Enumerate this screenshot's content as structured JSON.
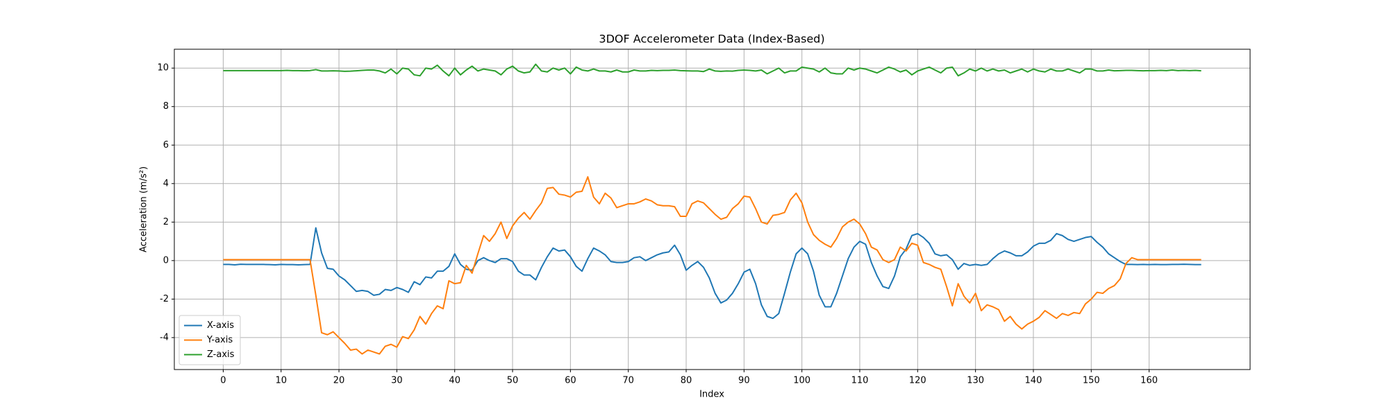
{
  "chart_data": {
    "type": "line",
    "title": "3DOF Accelerometer Data (Index-Based)",
    "xlabel": "Index",
    "ylabel": "Acceleration (m/s²)",
    "x": [
      0,
      1,
      2,
      3,
      4,
      5,
      6,
      7,
      8,
      9,
      10,
      11,
      12,
      13,
      14,
      15,
      16,
      17,
      18,
      19,
      20,
      21,
      22,
      23,
      24,
      25,
      26,
      27,
      28,
      29,
      30,
      31,
      32,
      33,
      34,
      35,
      36,
      37,
      38,
      39,
      40,
      41,
      42,
      43,
      44,
      45,
      46,
      47,
      48,
      49,
      50,
      51,
      52,
      53,
      54,
      55,
      56,
      57,
      58,
      59,
      60,
      61,
      62,
      63,
      64,
      65,
      66,
      67,
      68,
      69,
      70,
      71,
      72,
      73,
      74,
      75,
      76,
      77,
      78,
      79,
      80,
      81,
      82,
      83,
      84,
      85,
      86,
      87,
      88,
      89,
      90,
      91,
      92,
      93,
      94,
      95,
      96,
      97,
      98,
      99,
      100,
      101,
      102,
      103,
      104,
      105,
      106,
      107,
      108,
      109,
      110,
      111,
      112,
      113,
      114,
      115,
      116,
      117,
      118,
      119,
      120,
      121,
      122,
      123,
      124,
      125,
      126,
      127,
      128,
      129,
      130,
      131,
      132,
      133,
      134,
      135,
      136,
      137,
      138,
      139,
      140,
      141,
      142,
      143,
      144,
      145,
      146,
      147,
      148,
      149,
      150,
      151,
      152,
      153,
      154,
      155,
      156,
      157,
      158,
      159,
      160,
      161,
      162,
      163,
      164,
      165,
      166,
      167,
      168,
      169
    ],
    "series": [
      {
        "name": "X-axis",
        "color": "#1f77b4",
        "values": [
          -0.2,
          -0.2,
          -0.22,
          -0.19,
          -0.2,
          -0.2,
          -0.2,
          -0.2,
          -0.21,
          -0.22,
          -0.2,
          -0.21,
          -0.21,
          -0.22,
          -0.21,
          -0.2,
          1.7,
          0.4,
          -0.4,
          -0.45,
          -0.8,
          -1.0,
          -1.3,
          -1.6,
          -1.55,
          -1.6,
          -1.8,
          -1.75,
          -1.5,
          -1.55,
          -1.4,
          -1.5,
          -1.65,
          -1.1,
          -1.25,
          -0.85,
          -0.9,
          -0.55,
          -0.55,
          -0.3,
          0.35,
          -0.2,
          -0.45,
          -0.5,
          0.0,
          0.15,
          0.0,
          -0.1,
          0.1,
          0.1,
          -0.05,
          -0.55,
          -0.75,
          -0.75,
          -1.0,
          -0.35,
          0.2,
          0.65,
          0.5,
          0.55,
          0.2,
          -0.3,
          -0.55,
          0.1,
          0.65,
          0.5,
          0.3,
          -0.05,
          -0.1,
          -0.1,
          -0.05,
          0.15,
          0.2,
          0.0,
          0.15,
          0.3,
          0.4,
          0.45,
          0.8,
          0.3,
          -0.5,
          -0.25,
          -0.05,
          -0.35,
          -0.9,
          -1.7,
          -2.2,
          -2.05,
          -1.7,
          -1.2,
          -0.6,
          -0.45,
          -1.2,
          -2.3,
          -2.9,
          -3.0,
          -2.75,
          -1.7,
          -0.6,
          0.35,
          0.65,
          0.35,
          -0.55,
          -1.8,
          -2.4,
          -2.4,
          -1.7,
          -0.8,
          0.1,
          0.7,
          1.0,
          0.85,
          -0.1,
          -0.8,
          -1.35,
          -1.45,
          -0.8,
          0.2,
          0.6,
          1.3,
          1.4,
          1.2,
          0.9,
          0.35,
          0.25,
          0.3,
          0.05,
          -0.45,
          -0.15,
          -0.25,
          -0.2,
          -0.25,
          -0.2,
          0.1,
          0.35,
          0.5,
          0.4,
          0.25,
          0.25,
          0.45,
          0.75,
          0.9,
          0.9,
          1.05,
          1.4,
          1.3,
          1.1,
          1.0,
          1.1,
          1.2,
          1.25,
          0.95,
          0.7,
          0.35,
          0.15,
          -0.05,
          -0.2,
          -0.2,
          -0.21,
          -0.2,
          -0.21,
          -0.2,
          -0.21,
          -0.21,
          -0.2,
          -0.2,
          -0.19,
          -0.2,
          -0.21,
          -0.21
        ]
      },
      {
        "name": "Y-axis",
        "color": "#ff7f0e",
        "values": [
          0.05,
          0.05,
          0.05,
          0.05,
          0.05,
          0.05,
          0.05,
          0.05,
          0.05,
          0.05,
          0.05,
          0.05,
          0.05,
          0.05,
          0.05,
          0.05,
          -1.8,
          -3.75,
          -3.85,
          -3.7,
          -4.0,
          -4.3,
          -4.65,
          -4.6,
          -4.85,
          -4.65,
          -4.75,
          -4.85,
          -4.45,
          -4.35,
          -4.5,
          -3.95,
          -4.05,
          -3.6,
          -2.9,
          -3.3,
          -2.75,
          -2.35,
          -2.5,
          -1.05,
          -1.2,
          -1.15,
          -0.25,
          -0.65,
          0.35,
          1.3,
          1.0,
          1.4,
          2.0,
          1.15,
          1.8,
          2.2,
          2.5,
          2.15,
          2.6,
          3.0,
          3.75,
          3.8,
          3.45,
          3.4,
          3.3,
          3.55,
          3.6,
          4.35,
          3.3,
          2.95,
          3.5,
          3.25,
          2.75,
          2.85,
          2.95,
          2.95,
          3.05,
          3.2,
          3.1,
          2.9,
          2.85,
          2.85,
          2.8,
          2.3,
          2.3,
          2.95,
          3.1,
          3.0,
          2.7,
          2.4,
          2.15,
          2.25,
          2.7,
          2.95,
          3.35,
          3.3,
          2.7,
          2.0,
          1.9,
          2.35,
          2.4,
          2.5,
          3.15,
          3.5,
          3.0,
          2.0,
          1.35,
          1.05,
          0.85,
          0.7,
          1.15,
          1.75,
          2.0,
          2.15,
          1.9,
          1.4,
          0.7,
          0.55,
          0.05,
          -0.1,
          0.05,
          0.7,
          0.5,
          0.9,
          0.8,
          -0.1,
          -0.2,
          -0.35,
          -0.45,
          -1.35,
          -2.35,
          -1.2,
          -1.85,
          -2.2,
          -1.7,
          -2.6,
          -2.3,
          -2.4,
          -2.55,
          -3.15,
          -2.9,
          -3.3,
          -3.55,
          -3.3,
          -3.15,
          -2.95,
          -2.6,
          -2.8,
          -3.0,
          -2.75,
          -2.85,
          -2.7,
          -2.75,
          -2.25,
          -2.0,
          -1.65,
          -1.7,
          -1.45,
          -1.3,
          -0.95,
          -0.15,
          0.15,
          0.05,
          0.05,
          0.05,
          0.05,
          0.05,
          0.05,
          0.05,
          0.05,
          0.05,
          0.05,
          0.05,
          0.05
        ]
      },
      {
        "name": "Z-axis",
        "color": "#2ca02c",
        "values": [
          9.87,
          9.87,
          9.87,
          9.87,
          9.87,
          9.87,
          9.87,
          9.87,
          9.87,
          9.87,
          9.87,
          9.88,
          9.87,
          9.87,
          9.86,
          9.87,
          9.92,
          9.85,
          9.85,
          9.86,
          9.85,
          9.83,
          9.84,
          9.86,
          9.88,
          9.9,
          9.9,
          9.85,
          9.75,
          9.95,
          9.7,
          10.0,
          9.95,
          9.65,
          9.6,
          10.0,
          9.95,
          10.15,
          9.85,
          9.6,
          10.0,
          9.65,
          9.9,
          10.1,
          9.85,
          9.95,
          9.9,
          9.85,
          9.65,
          9.95,
          10.1,
          9.85,
          9.75,
          9.8,
          10.2,
          9.85,
          9.8,
          10.0,
          9.9,
          10.0,
          9.7,
          10.05,
          9.9,
          9.85,
          9.95,
          9.85,
          9.85,
          9.8,
          9.9,
          9.8,
          9.8,
          9.9,
          9.85,
          9.85,
          9.88,
          9.87,
          9.88,
          9.88,
          9.9,
          9.87,
          9.86,
          9.85,
          9.85,
          9.82,
          9.95,
          9.85,
          9.83,
          9.85,
          9.84,
          9.88,
          9.9,
          9.88,
          9.85,
          9.9,
          9.7,
          9.85,
          10.0,
          9.75,
          9.85,
          9.85,
          10.05,
          10.0,
          9.95,
          9.8,
          10.0,
          9.75,
          9.7,
          9.7,
          10.0,
          9.9,
          10.0,
          9.95,
          9.85,
          9.75,
          9.9,
          10.05,
          9.95,
          9.8,
          9.9,
          9.65,
          9.85,
          9.95,
          10.05,
          9.9,
          9.75,
          10.0,
          10.05,
          9.6,
          9.75,
          9.95,
          9.85,
          10.0,
          9.85,
          9.95,
          9.85,
          9.9,
          9.75,
          9.85,
          9.95,
          9.8,
          9.95,
          9.85,
          9.8,
          9.95,
          9.85,
          9.85,
          9.95,
          9.85,
          9.75,
          9.95,
          9.95,
          9.85,
          9.85,
          9.9,
          9.86,
          9.87,
          9.88,
          9.88,
          9.87,
          9.86,
          9.87,
          9.87,
          9.88,
          9.87,
          9.9,
          9.87,
          9.88,
          9.87,
          9.88,
          9.86
        ]
      }
    ],
    "xlim": [
      -8.45,
      177.45
    ],
    "xticks": [
      0,
      10,
      20,
      30,
      40,
      50,
      60,
      70,
      80,
      90,
      100,
      110,
      120,
      130,
      140,
      150,
      160
    ],
    "ylim": [
      -5.66,
      10.98
    ],
    "yticks": [
      -4,
      -2,
      0,
      2,
      4,
      6,
      8,
      10
    ],
    "grid": true,
    "legend": "lower left"
  }
}
